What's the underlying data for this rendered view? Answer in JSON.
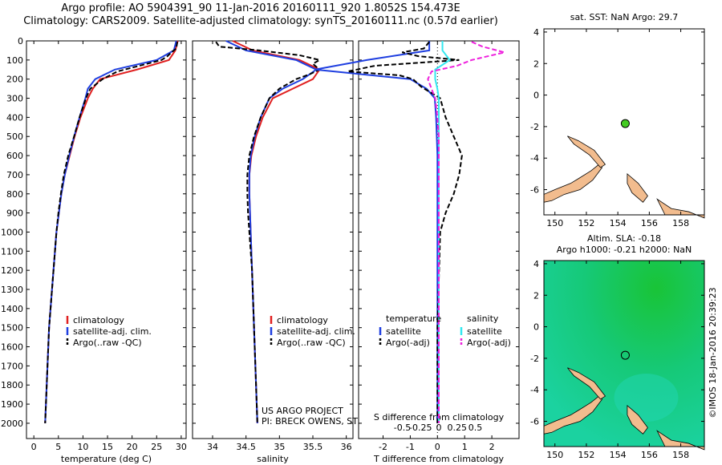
{
  "header": {
    "line1": "Argo profile: AO 5904391_90 11-Jan-2016 20160111_920 1.8052S 154.473E",
    "line2": "Climatology: CARS2009. Satellite-adjusted climatology: synTS_20160111.nc (0.57d earlier)"
  },
  "colors": {
    "clim": "#e02020",
    "sat": "#1f3fe0",
    "argo": "#000000",
    "sat_sal": "#33e8f0",
    "argo_sal": "#ee22dd",
    "land": "#f2bc8e"
  },
  "footer": {
    "project": "US ARGO PROJECT",
    "pi": "PI: BRECK OWENS, STEVE JAYNE, P.E. ROBBINS"
  },
  "chart_data": [
    {
      "type": "line",
      "xlabel": "temperature (deg C)",
      "xticks": [
        0,
        5,
        10,
        15,
        20,
        25,
        30
      ],
      "xlim": [
        -1.5,
        31
      ],
      "ylim": [
        0,
        2080
      ],
      "yticks": [
        0,
        100,
        200,
        300,
        400,
        500,
        600,
        700,
        800,
        900,
        1000,
        1100,
        1200,
        1300,
        1400,
        1500,
        1600,
        1700,
        1800,
        1900,
        2000
      ],
      "legend": [
        "climatology",
        "satellite-adj. clim.",
        "Argo(..raw -QC)"
      ],
      "series": [
        {
          "name": "climatology",
          "depth": [
            0,
            50,
            100,
            150,
            200,
            250,
            300,
            400,
            500,
            600,
            700,
            800,
            900,
            1000,
            1200,
            1500,
            2000
          ],
          "values": [
            29.3,
            28.8,
            27.5,
            21,
            13.5,
            12,
            11,
            9.5,
            8.3,
            7.3,
            6.3,
            5.6,
            5.1,
            4.6,
            4.0,
            3.1,
            2.3
          ]
        },
        {
          "name": "satellite-adj. clim.",
          "depth": [
            0,
            50,
            100,
            150,
            200,
            250,
            300,
            400,
            500,
            600,
            700,
            800,
            900,
            1000,
            1200,
            1500,
            2000
          ],
          "values": [
            29.0,
            28.5,
            25,
            16.5,
            12.5,
            11,
            10.5,
            9.3,
            8.2,
            7.2,
            6.3,
            5.6,
            5.1,
            4.6,
            4.0,
            3.1,
            2.3
          ]
        },
        {
          "name": "Argo(..raw -QC)",
          "depth": [
            5,
            40,
            60,
            80,
            100,
            130,
            160,
            200,
            250,
            300,
            400,
            500,
            600,
            700,
            800,
            900,
            1000,
            1200,
            1500,
            2000
          ],
          "values": [
            29.2,
            29.0,
            28.0,
            27.2,
            26.0,
            21.5,
            17,
            14.0,
            11.5,
            10.6,
            9.3,
            8.2,
            7.0,
            6.1,
            5.5,
            5.0,
            4.6,
            4.0,
            3.1,
            2.3
          ]
        }
      ]
    },
    {
      "type": "line",
      "xlabel": "salinity",
      "xticks": [
        34,
        34.5,
        35,
        35.5,
        36
      ],
      "xlim": [
        33.7,
        36.1
      ],
      "ylim": [
        0,
        2080
      ],
      "legend": [
        "climatology",
        "satellite-adj. clim.",
        "Argo(..raw -QC)"
      ],
      "series": [
        {
          "name": "climatology",
          "depth": [
            0,
            50,
            100,
            150,
            200,
            250,
            300,
            400,
            500,
            600,
            700,
            800,
            900,
            1000,
            1200,
            1500,
            2000
          ],
          "values": [
            34.3,
            34.6,
            35.3,
            35.6,
            35.5,
            35.2,
            34.9,
            34.75,
            34.65,
            34.58,
            34.55,
            34.55,
            34.56,
            34.57,
            34.59,
            34.62,
            34.67
          ]
        },
        {
          "name": "satellite-adj. clim.",
          "depth": [
            0,
            50,
            100,
            150,
            200,
            250,
            300,
            400,
            500,
            600,
            700,
            800,
            900,
            1000,
            1200,
            1500,
            2000
          ],
          "values": [
            34.2,
            34.5,
            35.25,
            35.55,
            35.35,
            35.05,
            34.85,
            34.72,
            34.63,
            34.57,
            34.55,
            34.55,
            34.56,
            34.57,
            34.59,
            34.62,
            34.67
          ]
        },
        {
          "name": "Argo(..raw -QC)",
          "depth": [
            5,
            30,
            50,
            75,
            100,
            120,
            150,
            175,
            200,
            250,
            300,
            400,
            500,
            600,
            700,
            800,
            900,
            1000,
            1200,
            1500,
            2000
          ],
          "values": [
            34.05,
            34.1,
            34.7,
            35.3,
            35.6,
            35.5,
            35.6,
            35.45,
            35.25,
            35.0,
            34.85,
            34.72,
            34.62,
            34.55,
            34.52,
            34.52,
            34.53,
            34.55,
            34.59,
            34.62,
            34.67
          ]
        }
      ]
    },
    {
      "type": "line",
      "xlabel": "T difference from climatology",
      "xlabel2": "S difference from climatology",
      "xticks": [
        -2,
        -1,
        0,
        1,
        2
      ],
      "xlim": [
        -2.9,
        3.0
      ],
      "xticks2": [
        -0.5,
        -0.25,
        0,
        0.25,
        0.5
      ],
      "xticklabels2": [
        "-0.5",
        "-0.25",
        "0",
        "0.25",
        "0.5"
      ],
      "ylim": [
        0,
        2080
      ],
      "legend_headers": [
        "temperature",
        "salinity"
      ],
      "legend": [
        "satellite",
        "Argo(-adj)",
        "satellite",
        "Argo(-adj)"
      ],
      "series": [
        {
          "name": "satellite",
          "depth": [
            0,
            50,
            100,
            150,
            200,
            250,
            300,
            400,
            600,
            800,
            1000,
            1500,
            2000
          ],
          "values": [
            -0.3,
            -0.3,
            -2.6,
            -4.5,
            -1.0,
            -0.4,
            -0.1,
            -0.05,
            0,
            0,
            0,
            0,
            0
          ]
        },
        {
          "name": "Argo(-adj)",
          "depth": [
            5,
            40,
            60,
            80,
            100,
            130,
            160,
            180,
            200,
            240,
            300,
            400,
            500,
            600,
            700,
            800,
            900,
            1000,
            1500,
            2000
          ],
          "values": [
            -0.3,
            -0.5,
            -1.3,
            -0.7,
            0.8,
            -2.3,
            -3.3,
            -1.4,
            -0.9,
            -0.6,
            0.1,
            0.3,
            0.6,
            0.9,
            0.8,
            0.6,
            0.3,
            0.1,
            0,
            0
          ]
        },
        {
          "name": "satellite",
          "depth": [
            0,
            50,
            100,
            150,
            200,
            250,
            300,
            400,
            600,
            800,
            1000,
            1500,
            2000
          ],
          "values": [
            0.05,
            0.05,
            0.15,
            -0.05,
            -0.05,
            -0.02,
            0,
            0,
            0,
            0,
            0,
            0,
            0
          ]
        },
        {
          "name": "Argo(-adj)",
          "depth": [
            5,
            30,
            60,
            100,
            130,
            160,
            200,
            250,
            300,
            400,
            500,
            600,
            800,
            1000,
            1500,
            2000
          ],
          "values": [
            0.45,
            0.6,
            0.9,
            0.45,
            0.25,
            -0.1,
            -0.15,
            -0.1,
            -0.05,
            -0.02,
            0,
            0,
            0,
            0,
            0,
            0
          ]
        }
      ]
    },
    {
      "type": "scatter",
      "title": "sat. SST: NaN Argo: 29.7",
      "xticks": [
        150,
        152,
        154,
        156,
        158
      ],
      "xlim": [
        149.3,
        159.5
      ],
      "yticks": [
        4,
        2,
        0,
        -2,
        -4,
        -6
      ],
      "ylim": [
        -7.6,
        4.2
      ],
      "point": {
        "x": 154.473,
        "y": -1.8052
      }
    },
    {
      "type": "heatmap",
      "title": "Altim. SLA: -0.18",
      "title2": "Argo h1000: -0.21 h2000: NaN",
      "xticks": [
        150,
        152,
        154,
        156,
        158
      ],
      "xlim": [
        149.3,
        159.5
      ],
      "yticks": [
        4,
        2,
        0,
        -2,
        -4,
        -6
      ],
      "ylim": [
        -7.6,
        4.2
      ],
      "point": {
        "x": 154.473,
        "y": -1.8052
      },
      "credit": "©IMOS 18-Jan-2016 20:39:23"
    }
  ]
}
